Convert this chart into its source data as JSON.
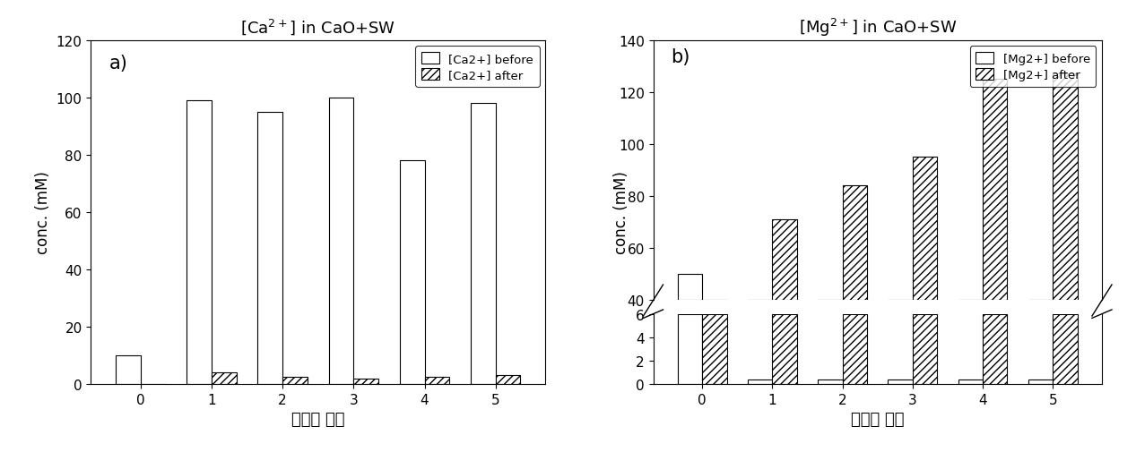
{
  "title_a": "[Ca$^{2+}$] in CaO+SW",
  "title_b": "[Mg$^{2+}$] in CaO+SW",
  "xlabel": "전처리 횟수",
  "ylabel": "conc. (mM)",
  "categories": [
    0,
    1,
    2,
    3,
    4,
    5
  ],
  "ca_before": [
    10,
    99,
    95,
    100,
    78,
    98
  ],
  "ca_after": [
    0,
    4,
    2.5,
    2,
    2.5,
    3
  ],
  "mg_before": [
    50,
    0.4,
    0.4,
    0.4,
    0.4,
    0.4
  ],
  "mg_after": [
    6,
    71,
    84,
    95,
    125,
    127
  ],
  "label_before_ca": "[Ca2+] before",
  "label_after_ca": "[Ca2+] after",
  "label_before_mg": "[Mg2+] before",
  "label_after_mg": "[Mg2+] after",
  "bar_width": 0.35,
  "background": "#ffffff",
  "bar_color_before": "#ffffff",
  "bar_edge": "#000000",
  "hatch_after": "////",
  "label_a": "a)",
  "label_b": "b)",
  "ca_ylim": [
    0,
    120
  ],
  "ca_yticks": [
    0,
    20,
    40,
    60,
    80,
    100,
    120
  ],
  "mg_upper_ylim": [
    40,
    140
  ],
  "mg_upper_yticks": [
    40,
    60,
    80,
    100,
    120,
    140
  ],
  "mg_lower_ylim": [
    0,
    6
  ],
  "mg_lower_yticks": [
    0,
    2,
    4,
    6
  ]
}
